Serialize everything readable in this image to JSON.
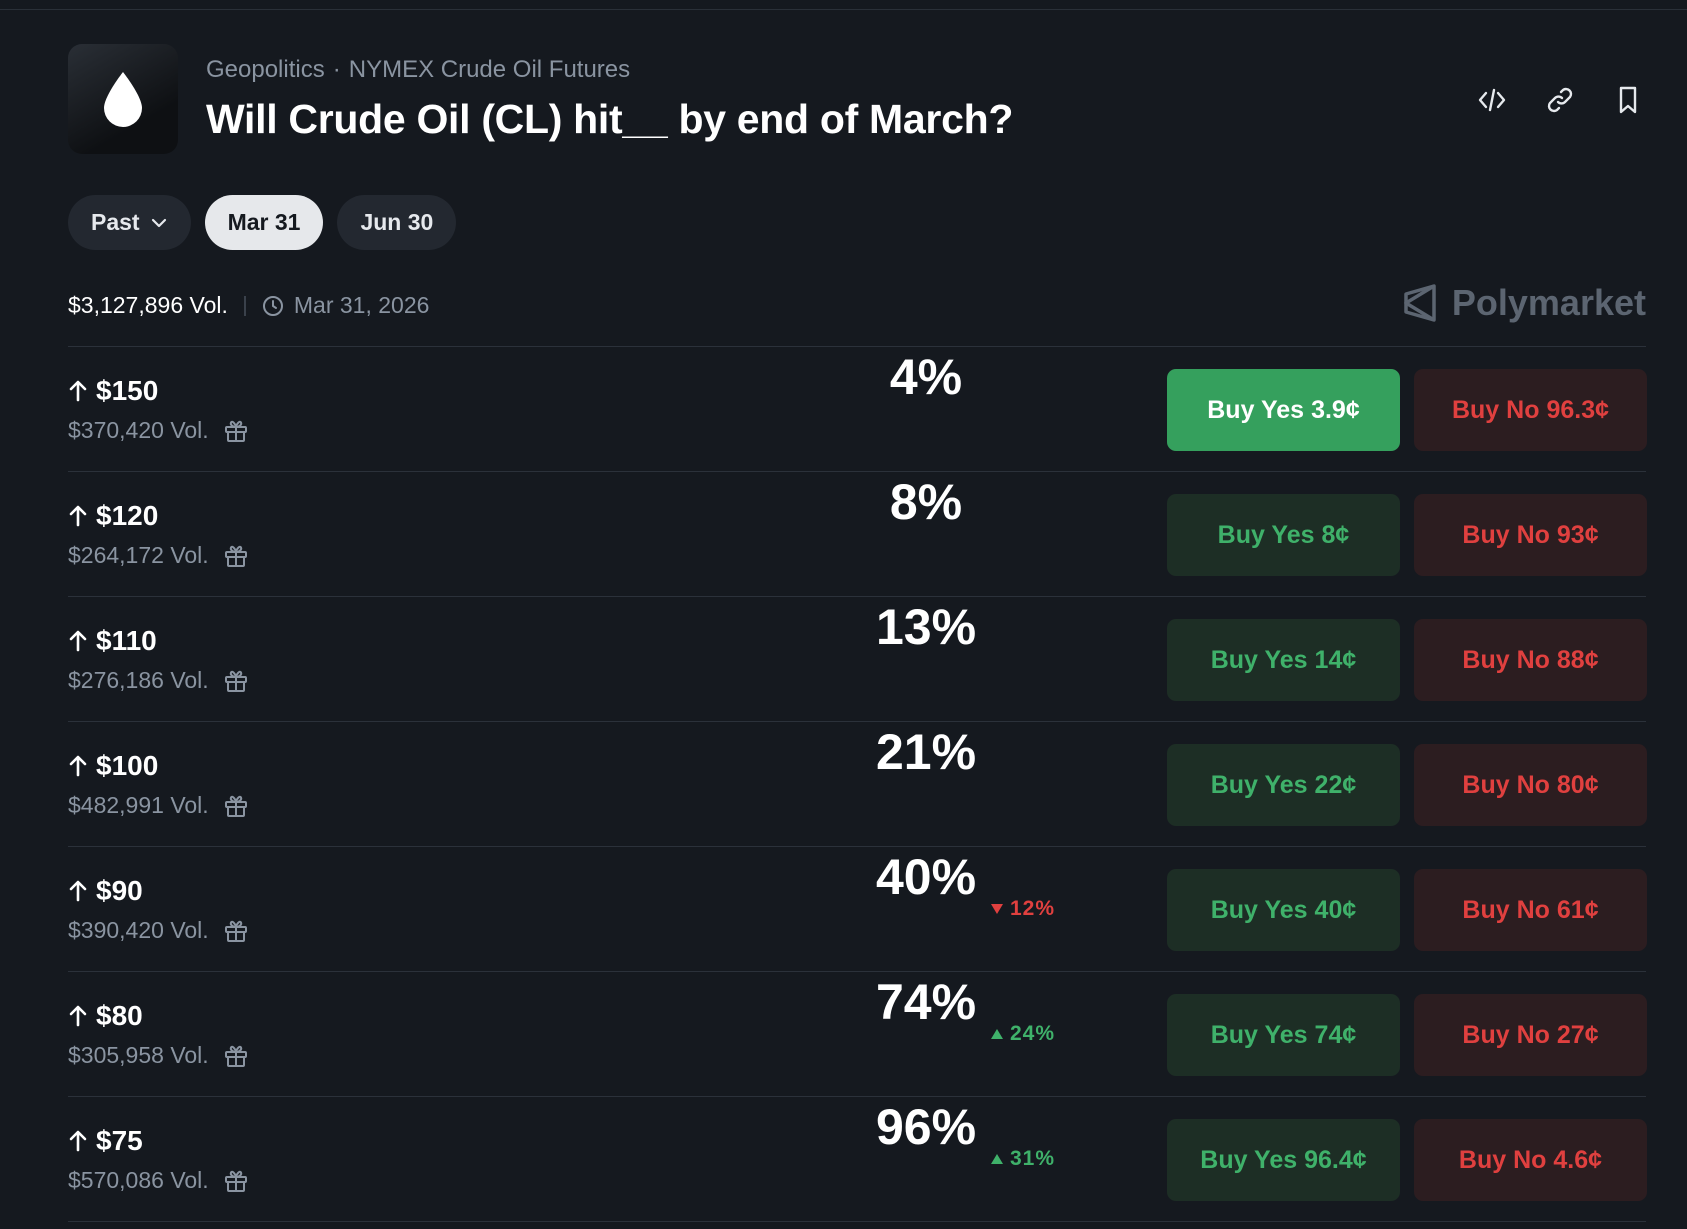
{
  "header": {
    "category": "Geopolitics",
    "subcategory": "NYMEX Crude Oil Futures",
    "title": "Will Crude Oil (CL) hit__ by end of March?",
    "icons": [
      "embed-code-icon",
      "link-icon",
      "bookmark-icon"
    ]
  },
  "filters": {
    "past_label": "Past",
    "dates": [
      "Mar 31",
      "Jun 30"
    ],
    "active": "Mar 31"
  },
  "meta": {
    "volume": "$3,127,896 Vol.",
    "end_date": "Mar 31, 2026",
    "brand": "Polymarket"
  },
  "colors": {
    "background": "#15191f",
    "yes_green": "#3fb16a",
    "no_red": "#e0403f"
  },
  "rows": [
    {
      "strike": "$150",
      "volume": "$370,420 Vol.",
      "probability": "4%",
      "delta": "",
      "delta_dir": "",
      "yes_label": "Buy Yes",
      "yes_price": "3.9¢",
      "no_label": "Buy No",
      "no_price": "96.3¢",
      "highlighted": true
    },
    {
      "strike": "$120",
      "volume": "$264,172 Vol.",
      "probability": "8%",
      "delta": "",
      "delta_dir": "",
      "yes_label": "Buy Yes",
      "yes_price": "8¢",
      "no_label": "Buy No",
      "no_price": "93¢",
      "highlighted": false
    },
    {
      "strike": "$110",
      "volume": "$276,186 Vol.",
      "probability": "13%",
      "delta": "",
      "delta_dir": "",
      "yes_label": "Buy Yes",
      "yes_price": "14¢",
      "no_label": "Buy No",
      "no_price": "88¢",
      "highlighted": false
    },
    {
      "strike": "$100",
      "volume": "$482,991 Vol.",
      "probability": "21%",
      "delta": "",
      "delta_dir": "",
      "yes_label": "Buy Yes",
      "yes_price": "22¢",
      "no_label": "Buy No",
      "no_price": "80¢",
      "highlighted": false
    },
    {
      "strike": "$90",
      "volume": "$390,420 Vol.",
      "probability": "40%",
      "delta": "12%",
      "delta_dir": "down",
      "yes_label": "Buy Yes",
      "yes_price": "40¢",
      "no_label": "Buy No",
      "no_price": "61¢",
      "highlighted": false
    },
    {
      "strike": "$80",
      "volume": "$305,958 Vol.",
      "probability": "74%",
      "delta": "24%",
      "delta_dir": "up",
      "yes_label": "Buy Yes",
      "yes_price": "74¢",
      "no_label": "Buy No",
      "no_price": "27¢",
      "highlighted": false
    },
    {
      "strike": "$75",
      "volume": "$570,086 Vol.",
      "probability": "96%",
      "delta": "31%",
      "delta_dir": "up",
      "yes_label": "Buy Yes",
      "yes_price": "96.4¢",
      "no_label": "Buy No",
      "no_price": "4.6¢",
      "highlighted": false
    }
  ]
}
